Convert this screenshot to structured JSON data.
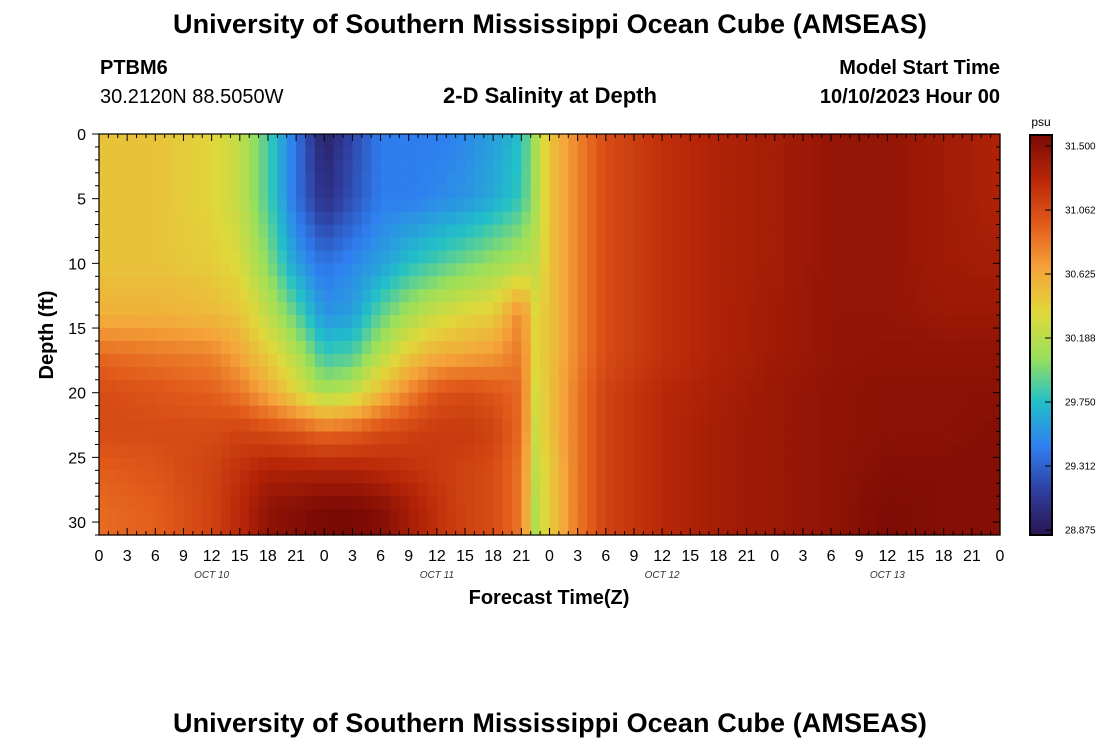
{
  "header": {
    "title": "University of Southern Mississippi Ocean Cube (AMSEAS)",
    "station_id": "PTBM6",
    "station_coords": "30.2120N  88.5050W",
    "plot_title": "2-D Salinity at Depth",
    "run_label": "Model Start Time",
    "run_value": "10/10/2023 Hour 00"
  },
  "footer": {
    "title": "University of Southern Mississippi Ocean Cube (AMSEAS)"
  },
  "chart_data": {
    "type": "heatmap",
    "title": "2-D Salinity at Depth",
    "xlabel": "Forecast Time(Z)",
    "ylabel": "Depth (ft)",
    "x_unit": "hours since 10/10/2023 00Z",
    "xlim": [
      0,
      96
    ],
    "ylim": [
      0,
      31
    ],
    "y_inverted": true,
    "x_ticks": [
      0,
      3,
      6,
      9,
      12,
      15,
      18,
      21,
      24,
      27,
      30,
      33,
      36,
      39,
      42,
      45,
      48,
      51,
      54,
      57,
      60,
      63,
      66,
      69,
      72,
      75,
      78,
      81,
      84,
      87,
      90,
      93,
      96
    ],
    "x_tick_labels": [
      "0",
      "3",
      "6",
      "9",
      "12",
      "15",
      "18",
      "21",
      "0",
      "3",
      "6",
      "9",
      "12",
      "15",
      "18",
      "21",
      "0",
      "3",
      "6",
      "9",
      "12",
      "15",
      "18",
      "21",
      "0",
      "3",
      "6",
      "9",
      "12",
      "15",
      "18",
      "21",
      "0"
    ],
    "day_labels": [
      {
        "x": 12,
        "label": "OCT 10"
      },
      {
        "x": 36,
        "label": "OCT 11"
      },
      {
        "x": 60,
        "label": "OCT 12"
      },
      {
        "x": 84,
        "label": "OCT 13"
      }
    ],
    "y_ticks": [
      0,
      5,
      10,
      15,
      20,
      25,
      30
    ],
    "y_tick_labels": [
      "0",
      "5",
      "10",
      "15",
      "20",
      "25",
      "30"
    ],
    "colorbar": {
      "unit": "psu",
      "min": 28.875,
      "max": 31.5,
      "tick_labels": [
        "31.500",
        "31.062",
        "30.625",
        "30.188",
        "29.750",
        "29.312",
        "28.875"
      ],
      "colors": [
        "#2a1650",
        "#2f3fa0",
        "#2f7ff0",
        "#22c0c8",
        "#9ae05a",
        "#e0d83a",
        "#f5a33a",
        "#e25a1a",
        "#b82608",
        "#7a0a04"
      ]
    },
    "x": [
      0,
      6,
      12,
      15,
      18,
      21,
      24,
      27,
      30,
      33,
      36,
      39,
      42,
      45,
      46.5,
      48,
      51,
      54,
      60,
      66,
      72,
      78,
      84,
      90,
      96
    ],
    "y": [
      0,
      5,
      10,
      14,
      17,
      20,
      23,
      26,
      29,
      31
    ],
    "z": [
      [
        30.45,
        30.45,
        30.35,
        30.2,
        29.85,
        29.4,
        28.95,
        29.2,
        29.45,
        29.45,
        29.45,
        29.5,
        29.6,
        29.75,
        30.1,
        30.45,
        30.75,
        31.0,
        31.15,
        31.25,
        31.3,
        31.38,
        31.38,
        31.32,
        31.25
      ],
      [
        30.45,
        30.45,
        30.35,
        30.2,
        29.85,
        29.4,
        29.05,
        29.25,
        29.45,
        29.45,
        29.5,
        29.55,
        29.65,
        29.8,
        30.1,
        30.45,
        30.75,
        31.0,
        31.15,
        31.25,
        31.3,
        31.38,
        31.38,
        31.32,
        31.25
      ],
      [
        30.45,
        30.45,
        30.4,
        30.3,
        30.0,
        29.6,
        29.4,
        29.5,
        29.6,
        29.75,
        29.85,
        29.95,
        30.05,
        30.15,
        30.2,
        30.45,
        30.75,
        31.0,
        31.15,
        31.25,
        31.3,
        31.38,
        31.38,
        31.32,
        31.3
      ],
      [
        30.55,
        30.55,
        30.5,
        30.45,
        30.2,
        29.9,
        29.55,
        29.6,
        29.9,
        30.1,
        30.25,
        30.35,
        30.4,
        30.75,
        30.35,
        30.45,
        30.75,
        31.0,
        31.15,
        31.25,
        31.32,
        31.38,
        31.38,
        31.35,
        31.35
      ],
      [
        30.85,
        30.8,
        30.75,
        30.6,
        30.4,
        30.15,
        29.8,
        29.85,
        30.15,
        30.4,
        30.55,
        30.6,
        30.65,
        30.8,
        30.35,
        30.45,
        30.75,
        31.0,
        31.15,
        31.25,
        31.32,
        31.38,
        31.4,
        31.4,
        31.4
      ],
      [
        31.0,
        30.95,
        30.9,
        30.8,
        30.6,
        30.35,
        30.1,
        30.2,
        30.5,
        30.75,
        30.95,
        31.0,
        30.95,
        30.85,
        30.3,
        30.45,
        30.8,
        31.05,
        31.2,
        31.28,
        31.35,
        31.4,
        31.42,
        31.42,
        31.42
      ],
      [
        31.0,
        31.0,
        31.0,
        31.05,
        31.0,
        30.95,
        30.85,
        30.9,
        31.0,
        31.05,
        31.1,
        31.1,
        31.05,
        30.85,
        30.25,
        30.45,
        30.8,
        31.05,
        31.2,
        31.3,
        31.35,
        31.4,
        31.42,
        31.42,
        31.45
      ],
      [
        30.9,
        30.95,
        31.05,
        31.15,
        31.25,
        31.25,
        31.25,
        31.25,
        31.2,
        31.15,
        31.1,
        31.05,
        31.0,
        30.8,
        30.2,
        30.4,
        30.8,
        31.05,
        31.2,
        31.3,
        31.35,
        31.4,
        31.45,
        31.45,
        31.45
      ],
      [
        30.85,
        30.9,
        31.05,
        31.2,
        31.4,
        31.45,
        31.5,
        31.5,
        31.45,
        31.3,
        31.15,
        31.05,
        31.0,
        30.8,
        30.15,
        30.4,
        30.8,
        31.05,
        31.2,
        31.3,
        31.35,
        31.4,
        31.48,
        31.45,
        31.45
      ],
      [
        30.85,
        30.9,
        31.05,
        31.2,
        31.4,
        31.45,
        31.5,
        31.5,
        31.45,
        31.3,
        31.15,
        31.05,
        31.0,
        30.8,
        30.15,
        30.4,
        30.8,
        31.05,
        31.2,
        31.3,
        31.35,
        31.4,
        31.48,
        31.45,
        31.45
      ]
    ]
  }
}
